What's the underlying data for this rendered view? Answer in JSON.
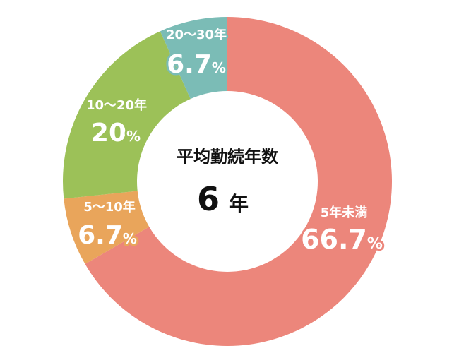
{
  "chart_data": {
    "type": "pie",
    "donut": true,
    "center": {
      "title": "平均勤続年数",
      "value": "6",
      "unit": "年"
    },
    "slices": [
      {
        "label": "5年未満",
        "value": 66.7,
        "display": "66.7",
        "pct": "%",
        "color": "#ec867b"
      },
      {
        "label": "5～10年",
        "value": 6.7,
        "display": "6.7",
        "pct": "%",
        "color": "#e9a55b"
      },
      {
        "label": "10～20年",
        "value": 20,
        "display": "20",
        "pct": "%",
        "color": "#9cc158"
      },
      {
        "label": "20～30年",
        "value": 6.7,
        "display": "6.7",
        "pct": "%",
        "color": "#7bbcb6"
      }
    ]
  }
}
